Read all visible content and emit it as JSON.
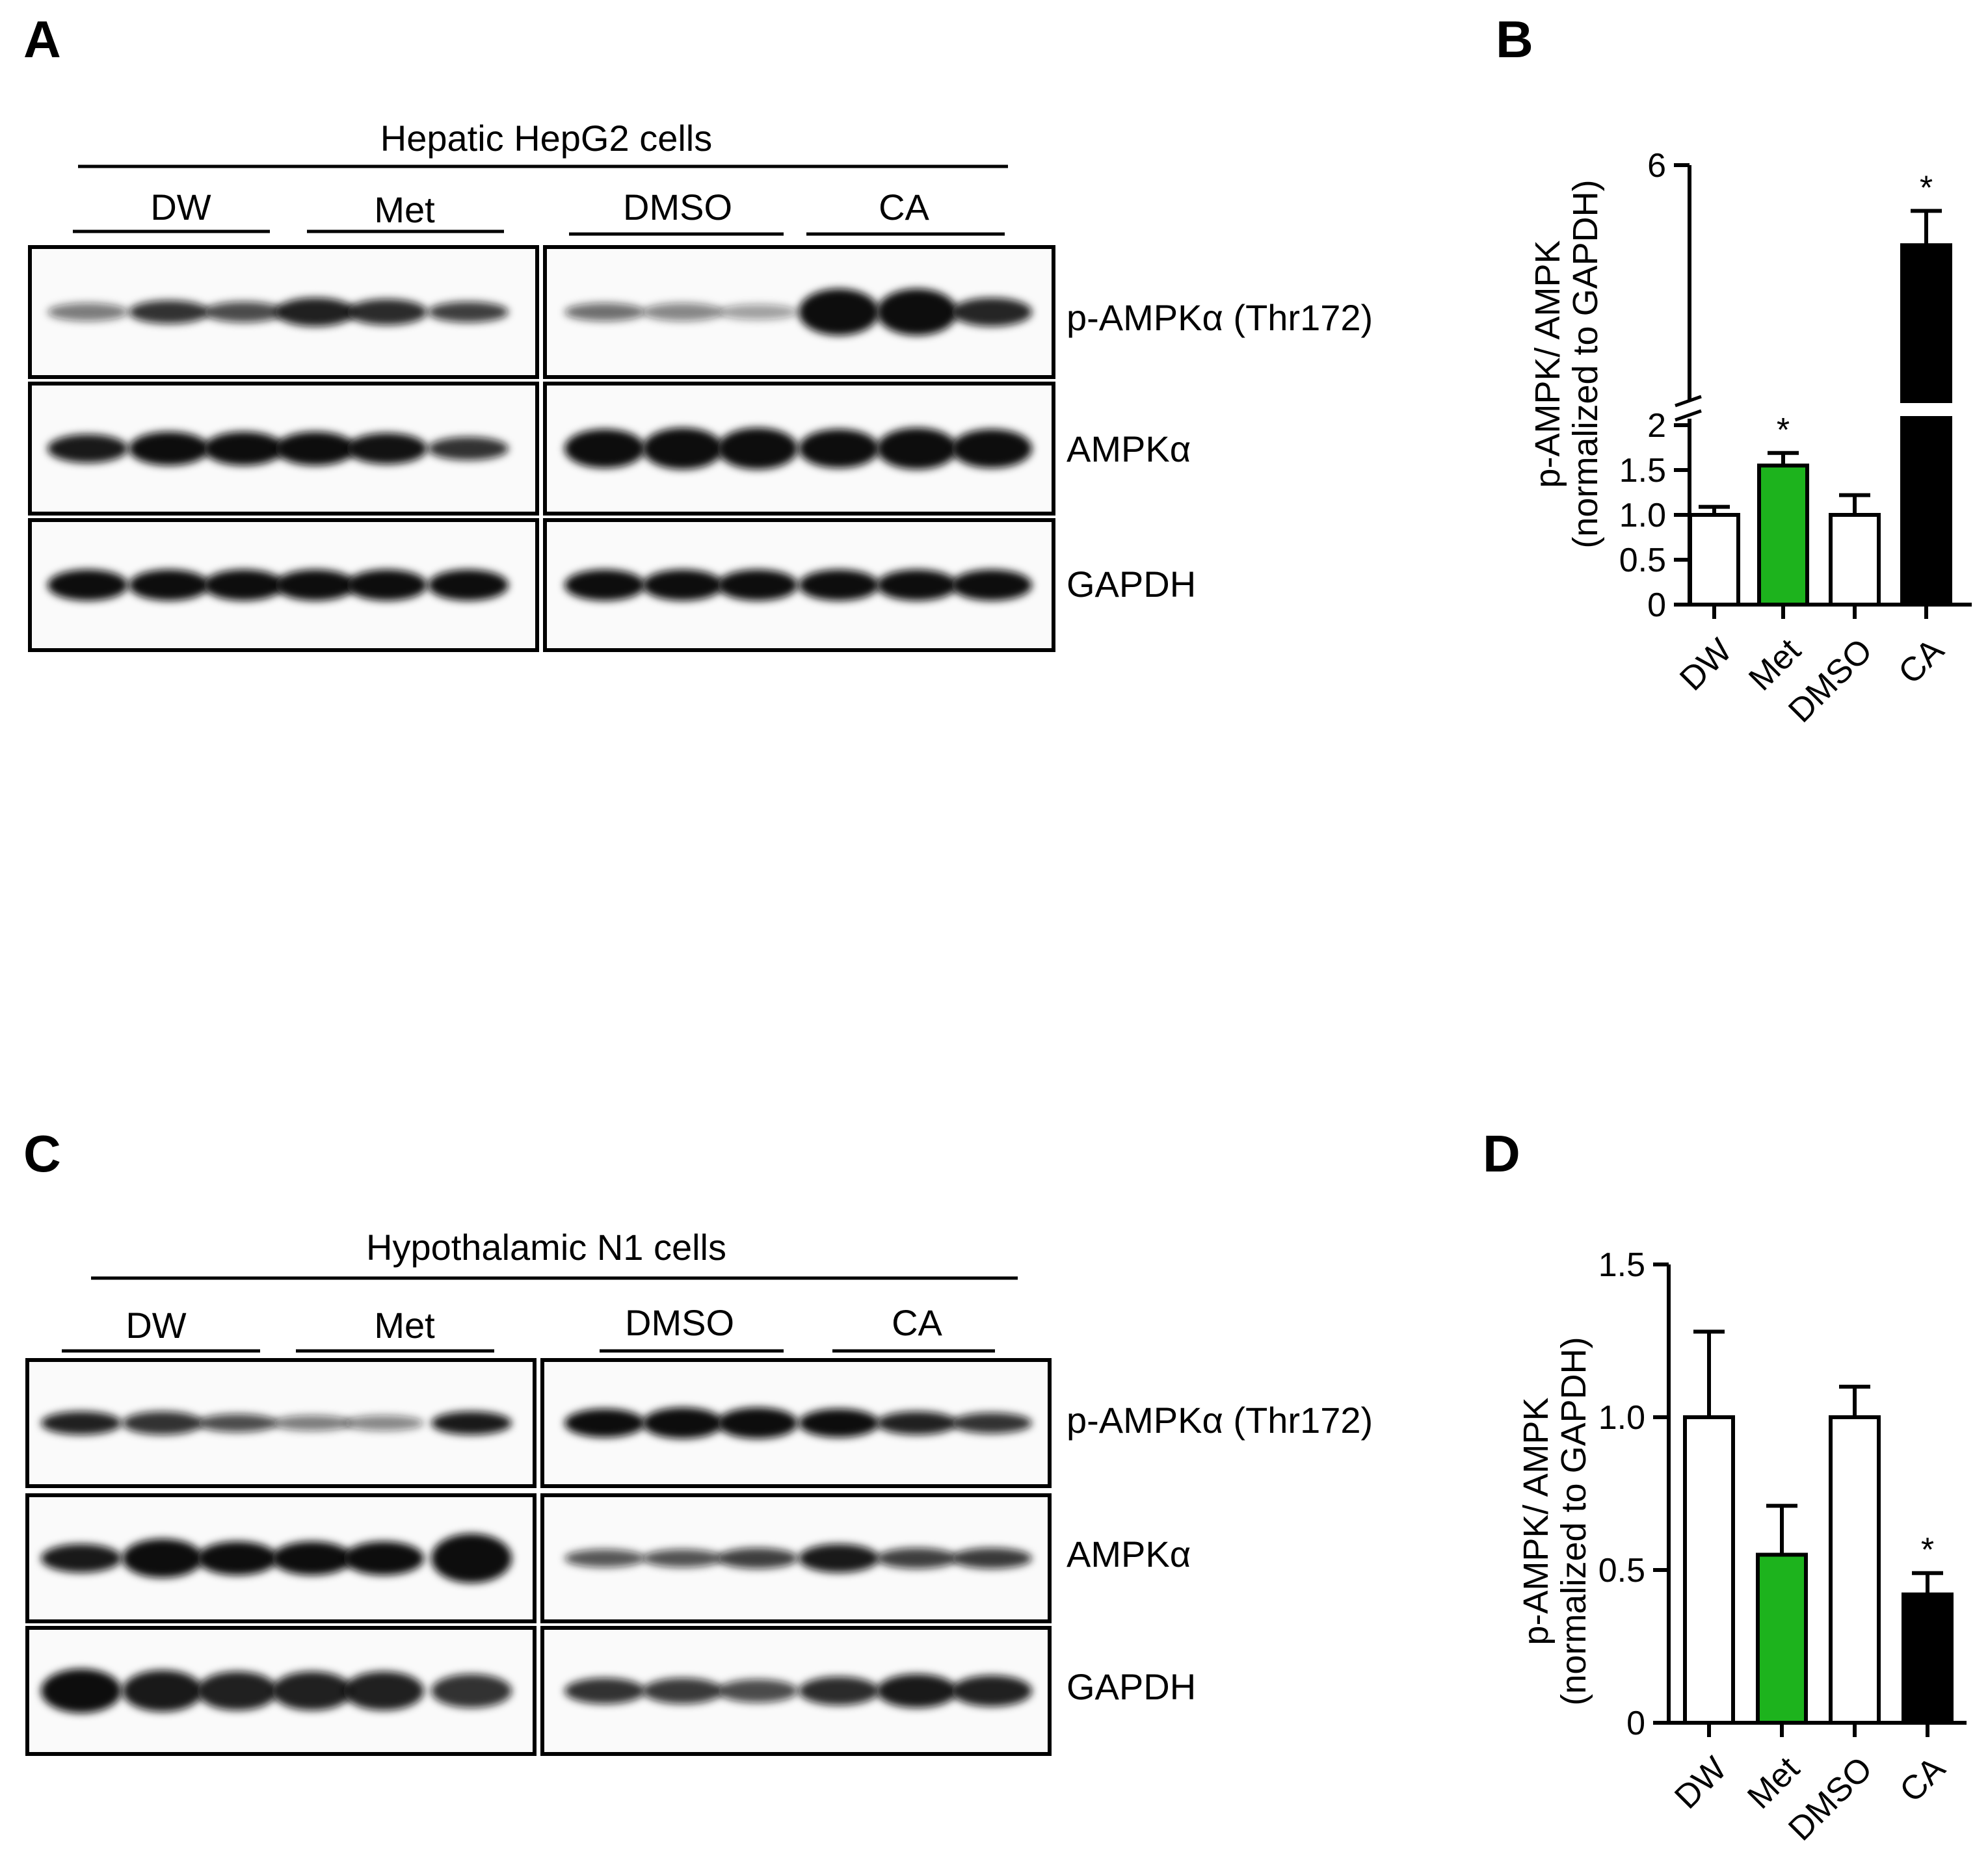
{
  "panels": [
    "A",
    "B",
    "C",
    "D"
  ],
  "blot_a": {
    "title": "Hepatic HepG2 cells",
    "groups": [
      "DW",
      "Met",
      "DMSO",
      "CA"
    ],
    "rows": [
      "p-AMPKα (Thr172)",
      "AMPKα",
      "GAPDH"
    ]
  },
  "blot_c": {
    "title": "Hypothalamic N1 cells",
    "groups": [
      "DW",
      "Met",
      "DMSO",
      "CA"
    ],
    "rows": [
      "p-AMPKα (Thr172)",
      "AMPKα",
      "GAPDH"
    ]
  },
  "colors": {
    "white_bar": "#ffffff",
    "met_bar": "#1db31d",
    "ca_bar": "#000000",
    "axis": "#000000"
  },
  "chart_data": [
    {
      "panel": "B",
      "type": "bar",
      "categories": [
        "DW",
        "Met",
        "DMSO",
        "CA"
      ],
      "values": [
        1.0,
        1.55,
        1.0,
        4.6
      ],
      "errors": [
        0.09,
        0.14,
        0.22,
        0.6
      ],
      "significance": [
        "",
        "*",
        "",
        "*"
      ],
      "ylabel_line1": "p-AMPK/ AMPK",
      "ylabel_line2": "(normalized to GAPDH)",
      "yticks": [
        "0",
        "0.5",
        "1.0",
        "1.5",
        "2",
        "6"
      ],
      "ylim": [
        0,
        6
      ],
      "axis_break": [
        2,
        2
      ],
      "bar_colors": [
        "#ffffff",
        "#1db31d",
        "#ffffff",
        "#000000"
      ]
    },
    {
      "panel": "D",
      "type": "bar",
      "categories": [
        "DW",
        "Met",
        "DMSO",
        "CA"
      ],
      "values": [
        1.0,
        0.55,
        1.0,
        0.42
      ],
      "errors": [
        0.28,
        0.16,
        0.1,
        0.07
      ],
      "significance": [
        "",
        "",
        "",
        "*"
      ],
      "ylabel_line1": "p-AMPK/ AMPK",
      "ylabel_line2": "(normalized to GAPDH)",
      "yticks": [
        "0",
        "0.5",
        "1.0",
        "1.5"
      ],
      "ylim": [
        0,
        1.5
      ],
      "bar_colors": [
        "#ffffff",
        "#1db31d",
        "#ffffff",
        "#000000"
      ]
    }
  ]
}
